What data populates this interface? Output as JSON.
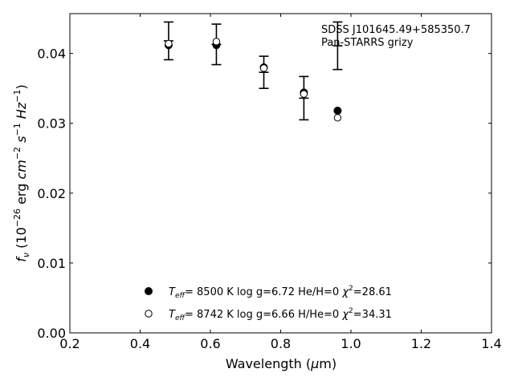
{
  "chart_data": {
    "type": "scatter",
    "title": "",
    "xlabel": "Wavelength (μm)",
    "ylabel": "fν (10⁻²⁶ erg cm⁻² s⁻¹ Hz⁻¹)",
    "xlim": [
      0.2,
      1.4
    ],
    "ylim": [
      0.0,
      0.0457
    ],
    "xticks": [
      "0.2",
      "0.4",
      "0.6",
      "0.8",
      "1.0",
      "1.2",
      "1.4"
    ],
    "yticks": [
      "0.00",
      "0.01",
      "0.02",
      "0.03",
      "0.04"
    ],
    "grid": false,
    "legend_position": "bottom-center",
    "annotations": [
      "SDSS J101645.49+585350.7",
      "Pan-STARRS grizy"
    ],
    "observed": {
      "x": [
        0.481,
        0.617,
        0.752,
        0.866,
        0.962
      ],
      "y": [
        0.0418,
        0.0413,
        0.0373,
        0.0336,
        0.0411
      ],
      "yerr": [
        0.0027,
        0.0029,
        0.0023,
        0.0031,
        0.0034
      ]
    },
    "series": [
      {
        "name": "T_eff = 8500 K  log g=6.72  He/H=0  χ²=28.61",
        "marker": "filled-circle",
        "x": [
          0.481,
          0.617,
          0.752,
          0.866,
          0.962
        ],
        "y": [
          0.0412,
          0.0412,
          0.038,
          0.0344,
          0.0318
        ]
      },
      {
        "name": "T_eff = 8742 K  log g=6.66  H/He=0  χ²=34.31",
        "marker": "open-circle",
        "x": [
          0.481,
          0.617,
          0.752,
          0.866,
          0.962
        ],
        "y": [
          0.0414,
          0.0417,
          0.0379,
          0.0342,
          0.0308
        ]
      }
    ],
    "legend": [
      {
        "teff": "8500 K",
        "logg": "log g=6.72",
        "comp": "He/H=0",
        "chi": "=28.61"
      },
      {
        "teff": "8742 K",
        "logg": "log g=6.66",
        "comp": "H/He=0",
        "chi": "=34.31"
      }
    ]
  }
}
